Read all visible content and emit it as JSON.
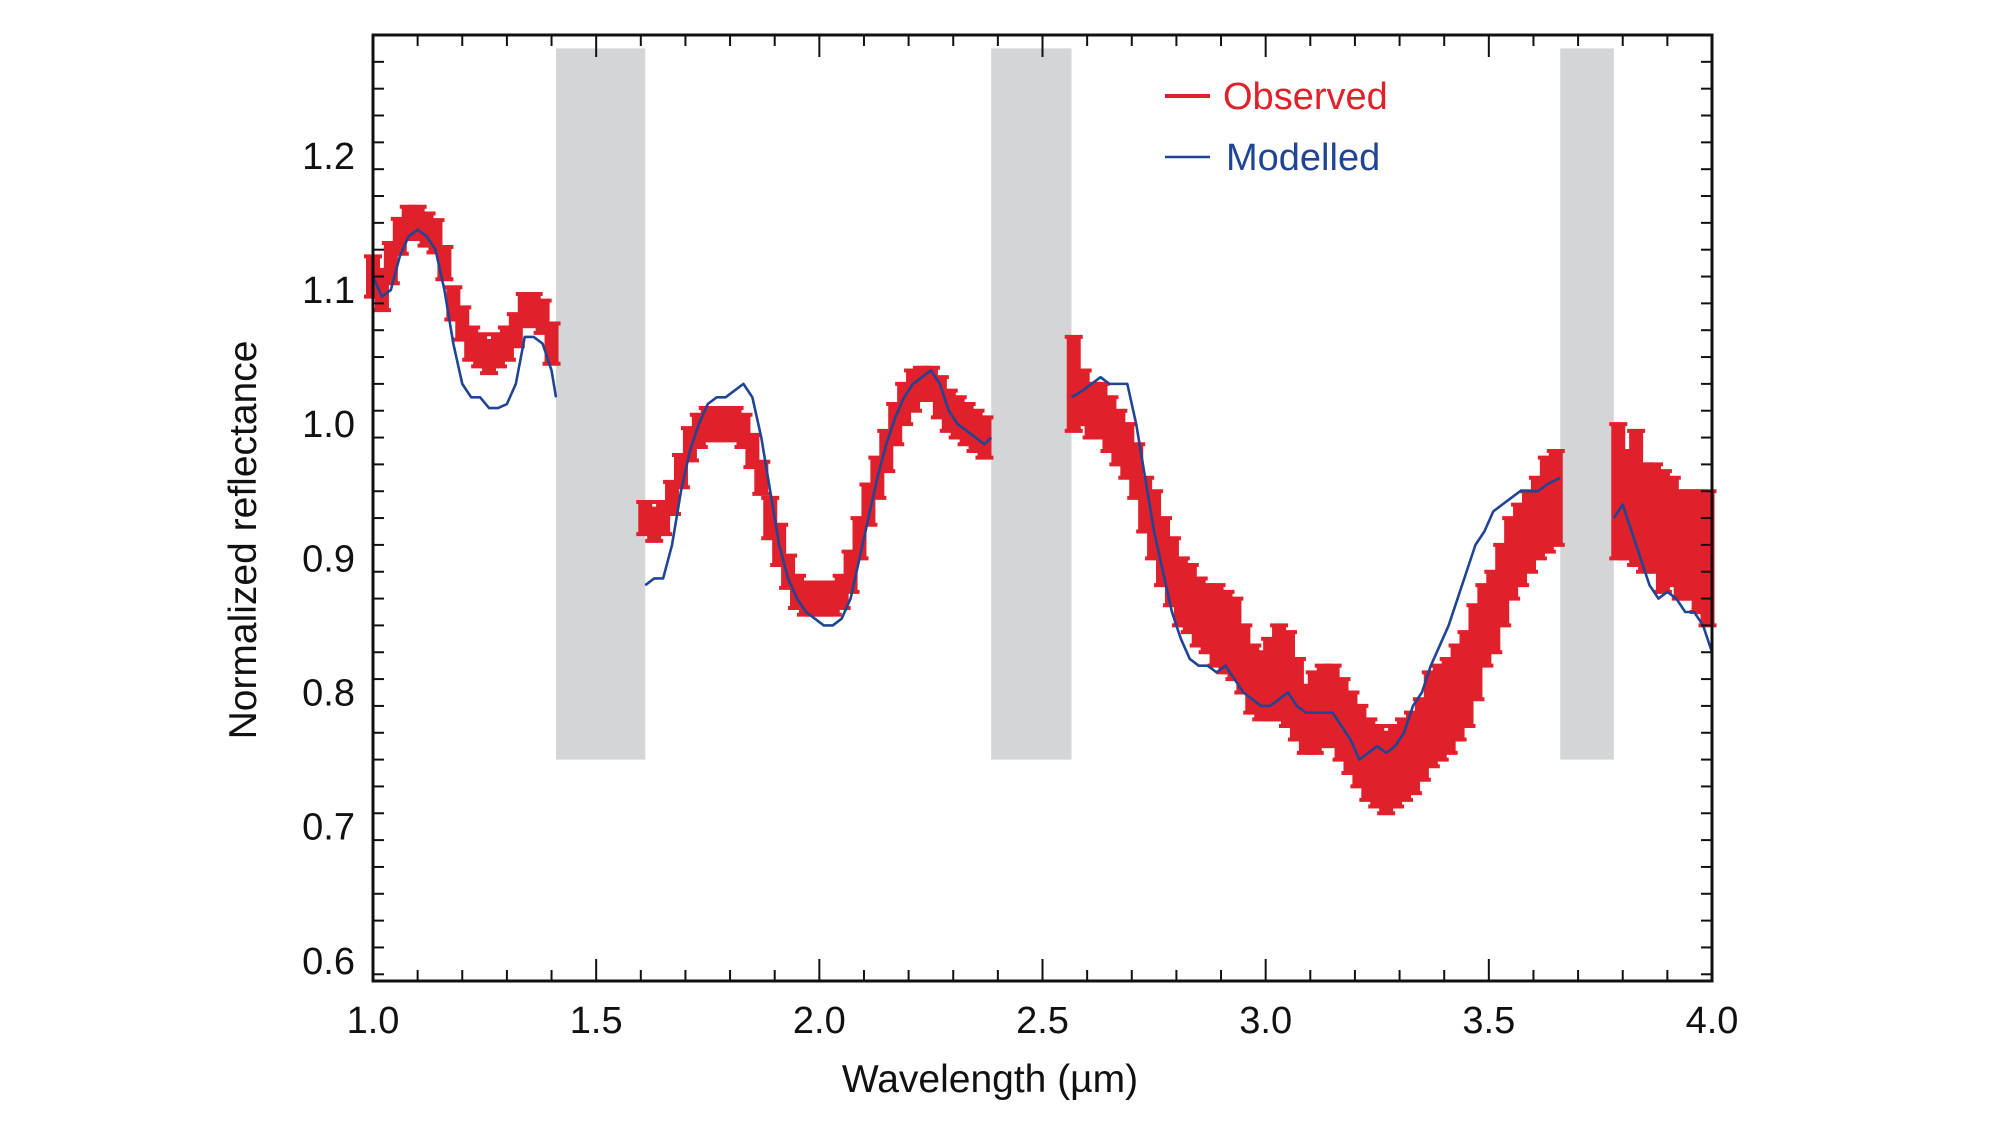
{
  "chart_data": {
    "type": "line",
    "title": "",
    "xlabel": "Wavelength (µm)",
    "ylabel": "Normalized reflectance",
    "xlim": [
      1.0,
      4.0
    ],
    "ylim": [
      0.585,
      1.29
    ],
    "xticks": [
      "1.0",
      "1.5",
      "2.0",
      "2.5",
      "3.0",
      "3.5",
      "4.0"
    ],
    "yticks": [
      "0.6",
      "0.7",
      "0.8",
      "0.9",
      "1.0",
      "1.1",
      "1.2"
    ],
    "legend_position": "top-right",
    "colors": {
      "observed": "#e0202a",
      "modelled": "#1f4594",
      "band": "#d4d5d7"
    },
    "excluded_bands": [
      [
        1.41,
        1.61
      ],
      [
        2.385,
        2.565
      ],
      [
        3.66,
        3.78
      ]
    ],
    "band_y_range": [
      0.75,
      1.28
    ],
    "series": [
      {
        "name": "Observed",
        "kind": "errorbar",
        "points_x_y_err": [
          [
            1.0,
            1.11,
            0.015
          ],
          [
            1.02,
            1.1,
            0.015
          ],
          [
            1.04,
            1.12,
            0.015
          ],
          [
            1.06,
            1.14,
            0.013
          ],
          [
            1.08,
            1.15,
            0.012
          ],
          [
            1.1,
            1.15,
            0.012
          ],
          [
            1.12,
            1.145,
            0.012
          ],
          [
            1.14,
            1.14,
            0.012
          ],
          [
            1.16,
            1.12,
            0.012
          ],
          [
            1.18,
            1.09,
            0.012
          ],
          [
            1.2,
            1.075,
            0.012
          ],
          [
            1.22,
            1.06,
            0.012
          ],
          [
            1.24,
            1.055,
            0.012
          ],
          [
            1.26,
            1.05,
            0.012
          ],
          [
            1.28,
            1.055,
            0.012
          ],
          [
            1.3,
            1.06,
            0.012
          ],
          [
            1.32,
            1.07,
            0.012
          ],
          [
            1.34,
            1.085,
            0.012
          ],
          [
            1.36,
            1.085,
            0.012
          ],
          [
            1.38,
            1.08,
            0.012
          ],
          [
            1.4,
            1.06,
            0.015
          ],
          [
            1.61,
            0.93,
            0.012
          ],
          [
            1.63,
            0.925,
            0.012
          ],
          [
            1.65,
            0.93,
            0.012
          ],
          [
            1.67,
            0.945,
            0.012
          ],
          [
            1.69,
            0.965,
            0.012
          ],
          [
            1.71,
            0.985,
            0.012
          ],
          [
            1.73,
            0.995,
            0.012
          ],
          [
            1.75,
            1.0,
            0.012
          ],
          [
            1.77,
            1.0,
            0.012
          ],
          [
            1.79,
            1.0,
            0.012
          ],
          [
            1.81,
            1.0,
            0.012
          ],
          [
            1.83,
            0.995,
            0.012
          ],
          [
            1.85,
            0.98,
            0.012
          ],
          [
            1.87,
            0.96,
            0.012
          ],
          [
            1.89,
            0.93,
            0.015
          ],
          [
            1.91,
            0.91,
            0.015
          ],
          [
            1.93,
            0.89,
            0.012
          ],
          [
            1.95,
            0.875,
            0.012
          ],
          [
            1.97,
            0.87,
            0.012
          ],
          [
            1.99,
            0.87,
            0.012
          ],
          [
            2.01,
            0.87,
            0.012
          ],
          [
            2.03,
            0.87,
            0.012
          ],
          [
            2.05,
            0.875,
            0.012
          ],
          [
            2.07,
            0.89,
            0.015
          ],
          [
            2.09,
            0.915,
            0.015
          ],
          [
            2.11,
            0.94,
            0.015
          ],
          [
            2.13,
            0.96,
            0.015
          ],
          [
            2.15,
            0.98,
            0.015
          ],
          [
            2.17,
            1.0,
            0.015
          ],
          [
            2.19,
            1.015,
            0.015
          ],
          [
            2.21,
            1.025,
            0.015
          ],
          [
            2.23,
            1.03,
            0.012
          ],
          [
            2.25,
            1.03,
            0.012
          ],
          [
            2.27,
            1.02,
            0.015
          ],
          [
            2.29,
            1.01,
            0.015
          ],
          [
            2.31,
            1.005,
            0.015
          ],
          [
            2.33,
            1.0,
            0.015
          ],
          [
            2.35,
            0.995,
            0.015
          ],
          [
            2.37,
            0.99,
            0.015
          ],
          [
            2.57,
            1.03,
            0.035
          ],
          [
            2.59,
            1.02,
            0.02
          ],
          [
            2.61,
            1.01,
            0.02
          ],
          [
            2.63,
            1.01,
            0.02
          ],
          [
            2.65,
            1.0,
            0.02
          ],
          [
            2.67,
            0.99,
            0.02
          ],
          [
            2.69,
            0.98,
            0.02
          ],
          [
            2.71,
            0.965,
            0.02
          ],
          [
            2.73,
            0.94,
            0.02
          ],
          [
            2.75,
            0.925,
            0.025
          ],
          [
            2.77,
            0.905,
            0.025
          ],
          [
            2.79,
            0.89,
            0.025
          ],
          [
            2.81,
            0.875,
            0.025
          ],
          [
            2.83,
            0.87,
            0.025
          ],
          [
            2.85,
            0.86,
            0.025
          ],
          [
            2.87,
            0.855,
            0.025
          ],
          [
            2.89,
            0.85,
            0.03
          ],
          [
            2.91,
            0.845,
            0.03
          ],
          [
            2.93,
            0.84,
            0.03
          ],
          [
            2.95,
            0.825,
            0.025
          ],
          [
            2.97,
            0.81,
            0.025
          ],
          [
            2.99,
            0.805,
            0.025
          ],
          [
            3.01,
            0.81,
            0.03
          ],
          [
            3.03,
            0.815,
            0.035
          ],
          [
            3.05,
            0.81,
            0.035
          ],
          [
            3.07,
            0.795,
            0.03
          ],
          [
            3.09,
            0.78,
            0.025
          ],
          [
            3.11,
            0.785,
            0.03
          ],
          [
            3.13,
            0.79,
            0.03
          ],
          [
            3.15,
            0.79,
            0.03
          ],
          [
            3.17,
            0.78,
            0.03
          ],
          [
            3.19,
            0.77,
            0.03
          ],
          [
            3.21,
            0.76,
            0.03
          ],
          [
            3.23,
            0.75,
            0.03
          ],
          [
            3.25,
            0.745,
            0.03
          ],
          [
            3.27,
            0.74,
            0.03
          ],
          [
            3.29,
            0.745,
            0.03
          ],
          [
            3.31,
            0.75,
            0.03
          ],
          [
            3.33,
            0.755,
            0.03
          ],
          [
            3.35,
            0.765,
            0.03
          ],
          [
            3.37,
            0.78,
            0.035
          ],
          [
            3.39,
            0.785,
            0.035
          ],
          [
            3.41,
            0.79,
            0.035
          ],
          [
            3.43,
            0.8,
            0.035
          ],
          [
            3.45,
            0.81,
            0.035
          ],
          [
            3.47,
            0.83,
            0.035
          ],
          [
            3.49,
            0.85,
            0.03
          ],
          [
            3.51,
            0.86,
            0.03
          ],
          [
            3.53,
            0.88,
            0.03
          ],
          [
            3.55,
            0.9,
            0.03
          ],
          [
            3.57,
            0.91,
            0.03
          ],
          [
            3.59,
            0.92,
            0.03
          ],
          [
            3.61,
            0.93,
            0.03
          ],
          [
            3.63,
            0.94,
            0.035
          ],
          [
            3.65,
            0.945,
            0.035
          ],
          [
            3.79,
            0.95,
            0.05
          ],
          [
            3.81,
            0.94,
            0.04
          ],
          [
            3.83,
            0.945,
            0.05
          ],
          [
            3.85,
            0.93,
            0.04
          ],
          [
            3.87,
            0.93,
            0.04
          ],
          [
            3.89,
            0.92,
            0.045
          ],
          [
            3.91,
            0.92,
            0.04
          ],
          [
            3.93,
            0.91,
            0.04
          ],
          [
            3.95,
            0.91,
            0.04
          ],
          [
            3.97,
            0.905,
            0.045
          ],
          [
            3.99,
            0.9,
            0.05
          ]
        ]
      },
      {
        "name": "Modelled",
        "kind": "line",
        "segments": [
          [
            [
              1.0,
              1.11
            ],
            [
              1.02,
              1.095
            ],
            [
              1.04,
              1.1
            ],
            [
              1.06,
              1.125
            ],
            [
              1.08,
              1.14
            ],
            [
              1.1,
              1.145
            ],
            [
              1.12,
              1.14
            ],
            [
              1.14,
              1.13
            ],
            [
              1.16,
              1.1
            ],
            [
              1.18,
              1.06
            ],
            [
              1.2,
              1.03
            ],
            [
              1.22,
              1.02
            ],
            [
              1.24,
              1.02
            ],
            [
              1.26,
              1.012
            ],
            [
              1.28,
              1.012
            ],
            [
              1.3,
              1.015
            ],
            [
              1.32,
              1.03
            ],
            [
              1.34,
              1.065
            ],
            [
              1.36,
              1.065
            ],
            [
              1.38,
              1.06
            ],
            [
              1.4,
              1.04
            ],
            [
              1.41,
              1.02
            ]
          ],
          [
            [
              1.61,
              0.88
            ],
            [
              1.63,
              0.885
            ],
            [
              1.65,
              0.885
            ],
            [
              1.67,
              0.91
            ],
            [
              1.69,
              0.95
            ],
            [
              1.71,
              0.98
            ],
            [
              1.73,
              1.0
            ],
            [
              1.75,
              1.015
            ],
            [
              1.77,
              1.02
            ],
            [
              1.79,
              1.02
            ],
            [
              1.81,
              1.025
            ],
            [
              1.83,
              1.03
            ],
            [
              1.85,
              1.02
            ],
            [
              1.87,
              0.99
            ],
            [
              1.89,
              0.95
            ],
            [
              1.91,
              0.91
            ],
            [
              1.93,
              0.885
            ],
            [
              1.95,
              0.87
            ],
            [
              1.97,
              0.86
            ],
            [
              1.99,
              0.855
            ],
            [
              2.01,
              0.85
            ],
            [
              2.03,
              0.85
            ],
            [
              2.05,
              0.855
            ],
            [
              2.07,
              0.87
            ],
            [
              2.09,
              0.9
            ],
            [
              2.11,
              0.93
            ],
            [
              2.13,
              0.96
            ],
            [
              2.15,
              0.985
            ],
            [
              2.17,
              1.005
            ],
            [
              2.19,
              1.02
            ],
            [
              2.21,
              1.03
            ],
            [
              2.23,
              1.035
            ],
            [
              2.25,
              1.04
            ],
            [
              2.27,
              1.03
            ],
            [
              2.29,
              1.01
            ],
            [
              2.31,
              1.0
            ],
            [
              2.33,
              0.995
            ],
            [
              2.35,
              0.99
            ],
            [
              2.37,
              0.985
            ],
            [
              2.385,
              0.99
            ]
          ],
          [
            [
              2.565,
              1.02
            ],
            [
              2.59,
              1.025
            ],
            [
              2.61,
              1.03
            ],
            [
              2.63,
              1.035
            ],
            [
              2.65,
              1.03
            ],
            [
              2.67,
              1.03
            ],
            [
              2.69,
              1.03
            ],
            [
              2.71,
              1.0
            ],
            [
              2.73,
              0.96
            ],
            [
              2.75,
              0.92
            ],
            [
              2.77,
              0.89
            ],
            [
              2.79,
              0.86
            ],
            [
              2.81,
              0.84
            ],
            [
              2.83,
              0.825
            ],
            [
              2.85,
              0.82
            ],
            [
              2.87,
              0.82
            ],
            [
              2.89,
              0.815
            ],
            [
              2.91,
              0.82
            ],
            [
              2.93,
              0.81
            ],
            [
              2.95,
              0.8
            ],
            [
              2.97,
              0.795
            ],
            [
              2.99,
              0.79
            ],
            [
              3.01,
              0.79
            ],
            [
              3.03,
              0.795
            ],
            [
              3.05,
              0.8
            ],
            [
              3.07,
              0.79
            ],
            [
              3.09,
              0.785
            ],
            [
              3.11,
              0.785
            ],
            [
              3.13,
              0.785
            ],
            [
              3.15,
              0.785
            ],
            [
              3.17,
              0.775
            ],
            [
              3.19,
              0.765
            ],
            [
              3.21,
              0.75
            ],
            [
              3.23,
              0.755
            ],
            [
              3.25,
              0.76
            ],
            [
              3.27,
              0.755
            ],
            [
              3.29,
              0.76
            ],
            [
              3.31,
              0.77
            ],
            [
              3.33,
              0.79
            ],
            [
              3.35,
              0.8
            ],
            [
              3.37,
              0.82
            ],
            [
              3.39,
              0.835
            ],
            [
              3.41,
              0.85
            ],
            [
              3.43,
              0.87
            ],
            [
              3.45,
              0.89
            ],
            [
              3.47,
              0.91
            ],
            [
              3.49,
              0.92
            ],
            [
              3.51,
              0.935
            ],
            [
              3.53,
              0.94
            ],
            [
              3.55,
              0.945
            ],
            [
              3.57,
              0.95
            ],
            [
              3.59,
              0.95
            ],
            [
              3.61,
              0.95
            ],
            [
              3.63,
              0.955
            ],
            [
              3.66,
              0.96
            ]
          ],
          [
            [
              3.78,
              0.93
            ],
            [
              3.8,
              0.94
            ],
            [
              3.82,
              0.92
            ],
            [
              3.84,
              0.9
            ],
            [
              3.86,
              0.88
            ],
            [
              3.88,
              0.87
            ],
            [
              3.9,
              0.875
            ],
            [
              3.92,
              0.87
            ],
            [
              3.94,
              0.86
            ],
            [
              3.96,
              0.86
            ],
            [
              3.98,
              0.85
            ],
            [
              4.0,
              0.83
            ]
          ]
        ]
      }
    ]
  }
}
